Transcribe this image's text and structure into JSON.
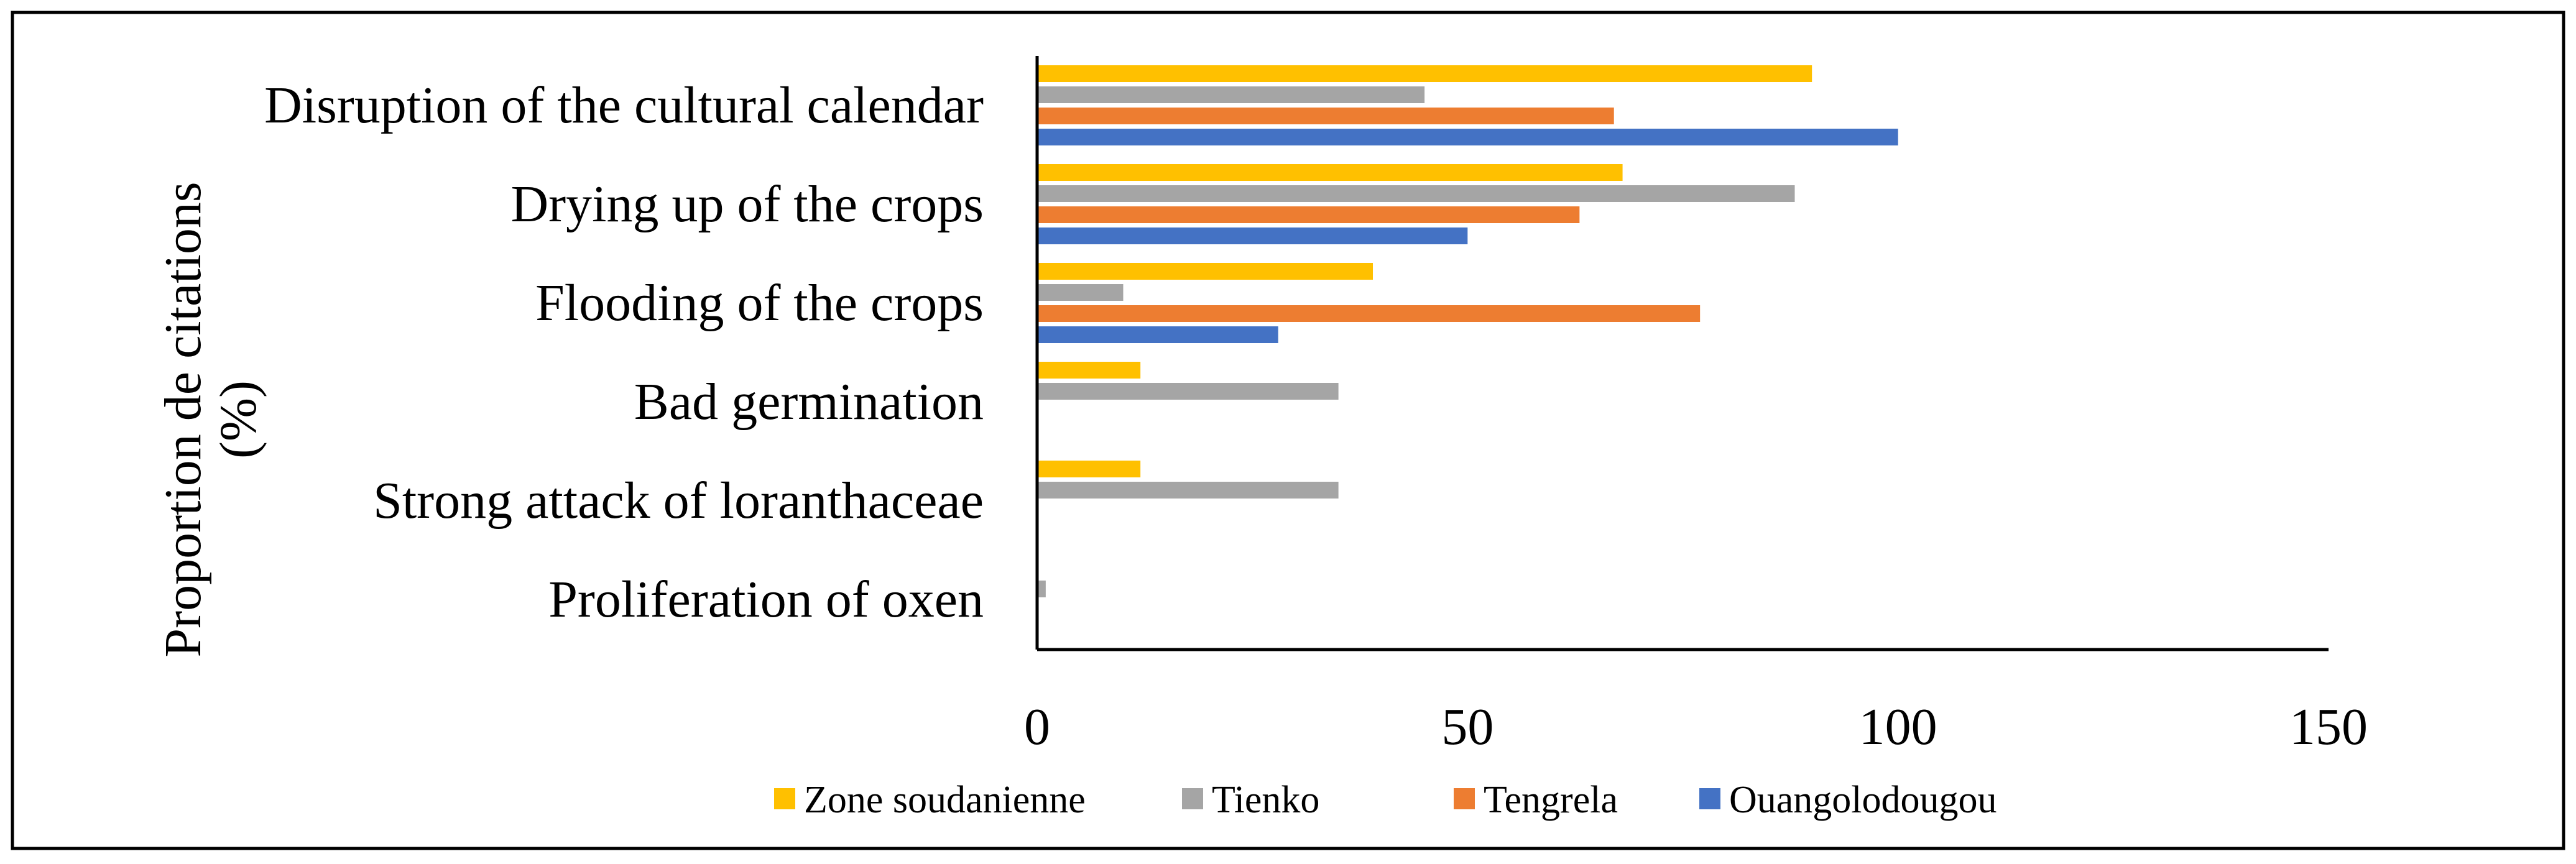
{
  "chart_data": {
    "type": "bar",
    "orientation": "horizontal",
    "title": "",
    "ylabel_lines": [
      "Proportion de citations",
      "(%)"
    ],
    "xlabel": "",
    "xlim": [
      0,
      150
    ],
    "xticks": [
      0,
      50,
      100,
      150
    ],
    "grid": false,
    "legend_position": "bottom",
    "categories": [
      "Disruption of the cultural calendar",
      "Drying up of the crops",
      "Flooding of the crops",
      "Bad germination",
      "Strong attack of loranthaceae",
      "Proliferation of oxen"
    ],
    "series": [
      {
        "name": "Zone soudanienne",
        "color": "#FFC000",
        "values": [
          90,
          68,
          39,
          12,
          12,
          0
        ]
      },
      {
        "name": "Tienko",
        "color": "#A5A5A5",
        "values": [
          45,
          88,
          10,
          35,
          35,
          1
        ]
      },
      {
        "name": "Tengrela",
        "color": "#ED7D31",
        "values": [
          67,
          63,
          77,
          0,
          0,
          0
        ]
      },
      {
        "name": "Ouangolodougou",
        "color": "#4472C4",
        "values": [
          100,
          50,
          28,
          0,
          0,
          0
        ]
      }
    ]
  }
}
